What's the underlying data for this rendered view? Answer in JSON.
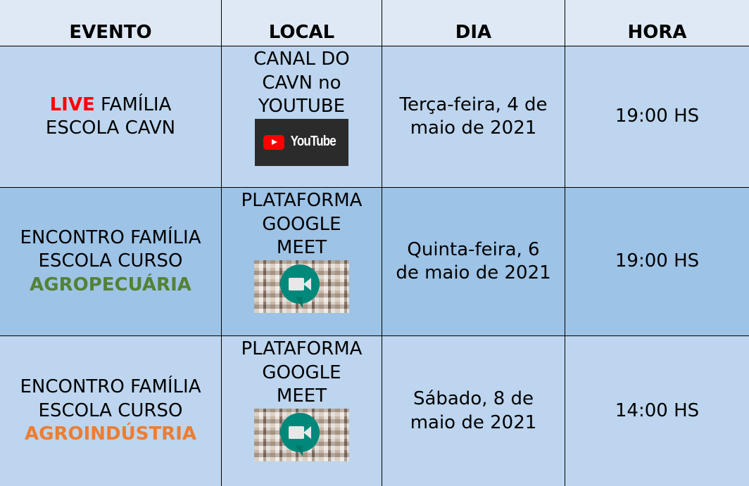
{
  "headers": [
    "EVENTO",
    "LOCAL",
    "DIA",
    "HORA"
  ],
  "colors": {
    "header_bg": "#dfe9f5",
    "row_light": "#bdd5ee",
    "row_dark": "#9dc3e6",
    "live": "#ff0000",
    "agropecuaria": "#548235",
    "agroindustria": "#ed7d31"
  },
  "rows": [
    {
      "evento_highlight": "LIVE",
      "evento_line1": "FAMÍLIA",
      "evento_line2": "ESCOLA CAVN",
      "local_lines": [
        "CANAL DO",
        "CAVN no",
        "YOUTUBE"
      ],
      "local_logo": "YouTube",
      "local_icon": "youtube-logo",
      "dia_lines": [
        "Terça-feira, 4 de",
        "maio de 2021"
      ],
      "hora": "19:00 HS"
    },
    {
      "evento_lines": [
        "ENCONTRO FAMÍLIA",
        "ESCOLA CURSO"
      ],
      "evento_course": "AGROPECUÁRIA",
      "local_lines": [
        "PLATAFORMA",
        "GOOGLE",
        "MEET"
      ],
      "local_icon": "google-meet-logo",
      "dia_lines": [
        "Quinta-feira, 6",
        "de maio de 2021"
      ],
      "hora": "19:00 HS"
    },
    {
      "evento_lines": [
        "ENCONTRO FAMÍLIA",
        "ESCOLA CURSO"
      ],
      "evento_course": "AGROINDÚSTRIA",
      "local_lines": [
        "PLATAFORMA",
        "GOOGLE",
        "MEET"
      ],
      "local_icon": "google-meet-logo",
      "dia_lines": [
        "Sábado, 8 de",
        "maio de 2021"
      ],
      "hora": "14:00 HS"
    }
  ]
}
